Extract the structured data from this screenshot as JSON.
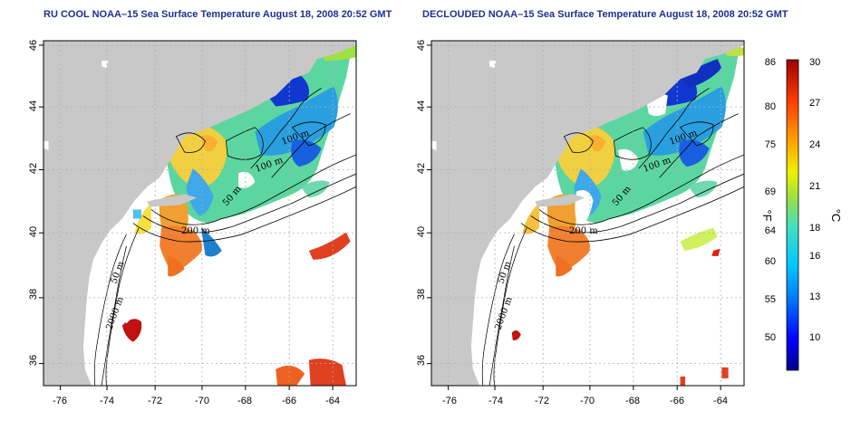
{
  "maps": [
    {
      "title": "RU COOL NOAA–15 Sea Surface Temperature August 18, 2008 20:52 GMT",
      "lon_ticks": [
        "-76",
        "-74",
        "-72",
        "-70",
        "-68",
        "-66",
        "-64"
      ],
      "lat_ticks": [
        "36",
        "38",
        "40",
        "42",
        "44",
        "46"
      ],
      "contour_labels": [
        "100 m",
        "100 m",
        "50 m",
        "200 m",
        "50 m",
        "2000 m"
      ]
    },
    {
      "title": "DECLOUDED NOAA–15 Sea Surface Temperature August 18, 2008 20:52 GMT",
      "lon_ticks": [
        "-76",
        "-74",
        "-72",
        "-70",
        "-68",
        "-66",
        "-64"
      ],
      "lat_ticks": [
        "36",
        "38",
        "40",
        "42",
        "44",
        "46"
      ],
      "contour_labels": [
        "100 m",
        "100 m",
        "50 m",
        "200 m",
        "50 m",
        "2000 m"
      ]
    }
  ],
  "colorbar": {
    "fahrenheit_label": "°F",
    "celsius_label": "°C",
    "fahrenheit_ticks": [
      "86",
      "80",
      "75",
      "69",
      "64",
      "60",
      "55",
      "50"
    ],
    "celsius_ticks": [
      "30",
      "27",
      "24",
      "21",
      "18",
      "16",
      "13",
      "10"
    ],
    "colors": [
      "#00008b",
      "#0000ff",
      "#0070ff",
      "#00c8ff",
      "#40e0c0",
      "#a0e040",
      "#f0f000",
      "#ffa000",
      "#ff4000",
      "#a00000"
    ]
  },
  "colors": {
    "land": "#c8c8c8",
    "ocean_background": "#ffffff",
    "grid": "#b0b0b0"
  }
}
